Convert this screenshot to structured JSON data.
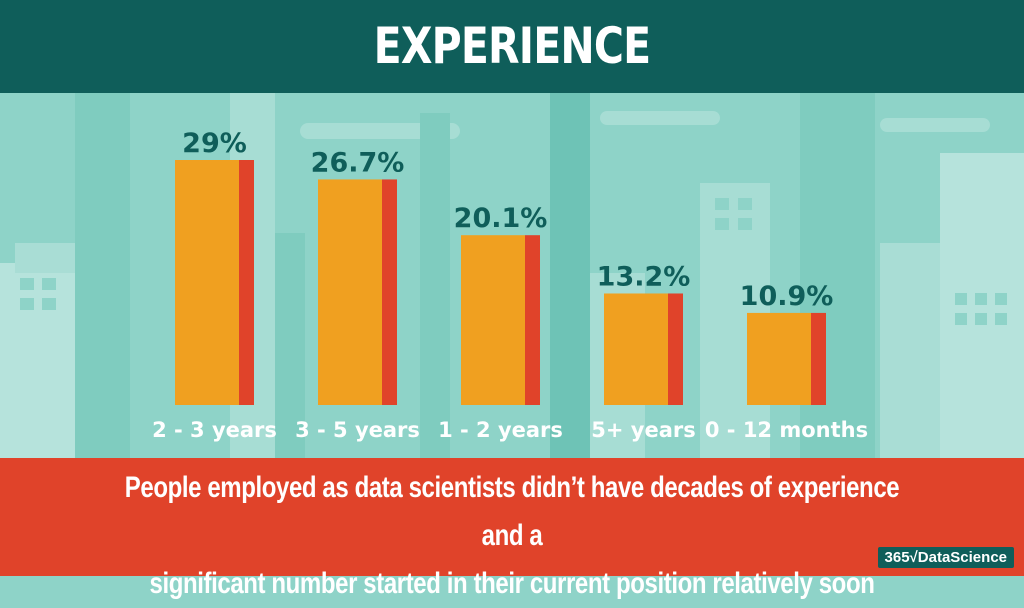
{
  "title": "EXPERIENCE",
  "caption_lines": [
    "People employed as data scientists didn’t have decades of experience and a",
    "significant number started in their current position relatively soon"
  ],
  "logo": {
    "prefix": "365",
    "mark": "√",
    "name": "DataScience"
  },
  "colors": {
    "header": "#0f5e5a",
    "footer": "#e0432a",
    "background": "#8ed3c8",
    "bar_front": "#f0a020",
    "bar_side": "#e0432a",
    "value_text": "#0f5e5a"
  },
  "chart_data": {
    "type": "bar",
    "categories": [
      "2 - 3 years",
      "3 - 5 years",
      "1 - 2 years",
      "5+ years",
      "0 - 12 months"
    ],
    "values": [
      29,
      26.7,
      20.1,
      13.2,
      10.9
    ],
    "value_labels": [
      "29%",
      "26.7%",
      "20.1%",
      "13.2%",
      "10.9%"
    ],
    "ylim": [
      0,
      29
    ],
    "grid": false
  }
}
